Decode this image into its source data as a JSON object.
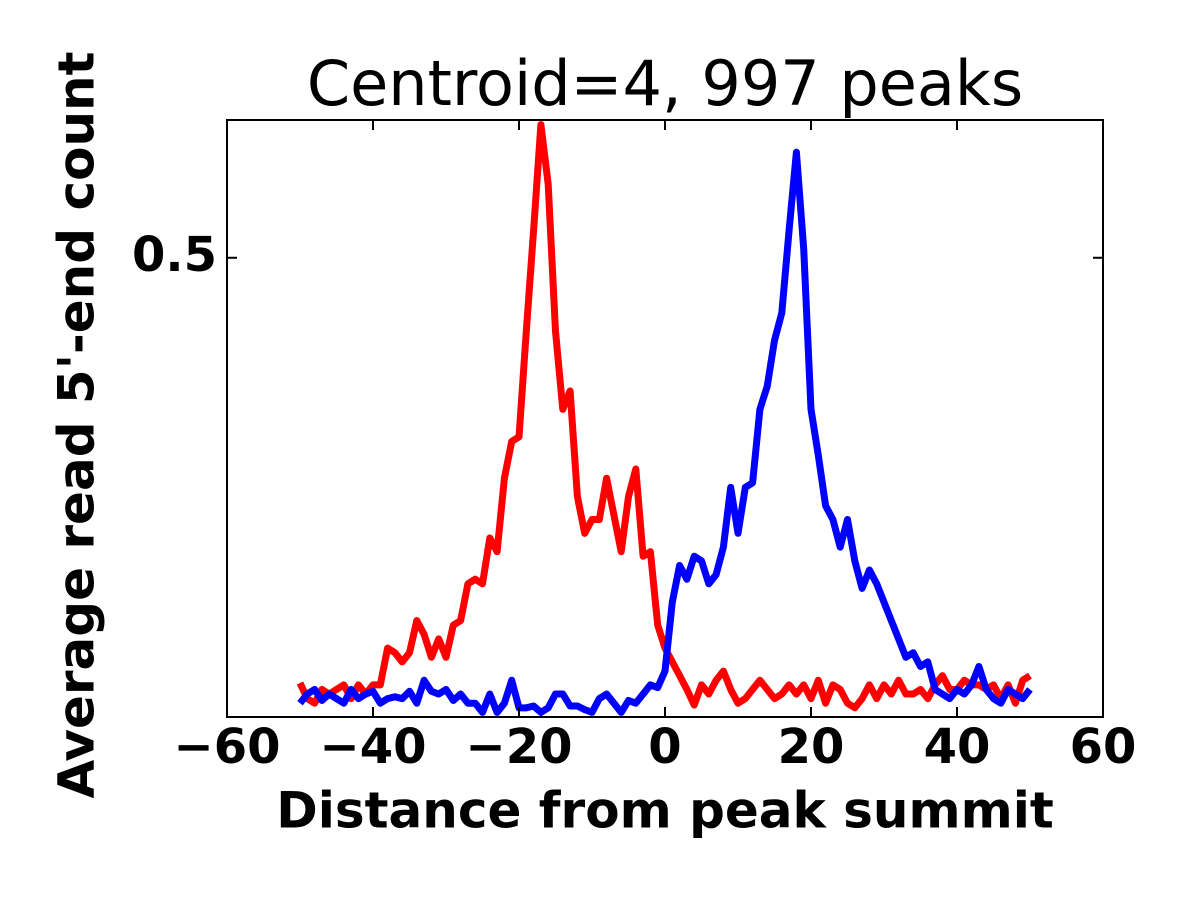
{
  "chart_data": {
    "type": "line",
    "title": "Centroid=4, 997 peaks",
    "x_label": "Distance from peak summit",
    "y_label": "Average read 5'-end count",
    "x": [
      -50,
      -49,
      -48,
      -47,
      -46,
      -45,
      -44,
      -43,
      -42,
      -41,
      -40,
      -39,
      -38,
      -37,
      -36,
      -35,
      -34,
      -33,
      -32,
      -31,
      -30,
      -29,
      -28,
      -27,
      -26,
      -25,
      -24,
      -23,
      -22,
      -21,
      -20,
      -19,
      -18,
      -17,
      -16,
      -15,
      -14,
      -13,
      -12,
      -11,
      -10,
      -9,
      -8,
      -7,
      -6,
      -5,
      -4,
      -3,
      -2,
      -1,
      0,
      1,
      2,
      3,
      4,
      5,
      6,
      7,
      8,
      9,
      10,
      11,
      12,
      13,
      14,
      15,
      16,
      17,
      18,
      19,
      20,
      21,
      22,
      23,
      24,
      25,
      26,
      27,
      28,
      29,
      30,
      31,
      32,
      33,
      34,
      35,
      36,
      37,
      38,
      39,
      40,
      41,
      42,
      43,
      44,
      45,
      46,
      47,
      48,
      49,
      50
    ],
    "series": [
      {
        "color": "#ff0000",
        "values": [
          0.037,
          0.02,
          0.015,
          0.03,
          0.025,
          0.03,
          0.035,
          0.02,
          0.035,
          0.025,
          0.035,
          0.035,
          0.075,
          0.07,
          0.06,
          0.07,
          0.105,
          0.09,
          0.065,
          0.085,
          0.065,
          0.1,
          0.105,
          0.145,
          0.15,
          0.145,
          0.195,
          0.18,
          0.26,
          0.3,
          0.305,
          0.42,
          0.53,
          0.645,
          0.58,
          0.42,
          0.335,
          0.355,
          0.24,
          0.2,
          0.215,
          0.215,
          0.26,
          0.22,
          0.18,
          0.24,
          0.27,
          0.175,
          0.18,
          0.1,
          0.075,
          0.06,
          0.045,
          0.03,
          0.013,
          0.035,
          0.025,
          0.04,
          0.05,
          0.03,
          0.015,
          0.02,
          0.03,
          0.04,
          0.03,
          0.02,
          0.025,
          0.035,
          0.025,
          0.035,
          0.02,
          0.04,
          0.015,
          0.035,
          0.03,
          0.015,
          0.01,
          0.02,
          0.035,
          0.02,
          0.035,
          0.025,
          0.04,
          0.025,
          0.025,
          0.03,
          0.02,
          0.035,
          0.045,
          0.03,
          0.03,
          0.04,
          0.035,
          0.035,
          0.03,
          0.035,
          0.02,
          0.035,
          0.015,
          0.04,
          0.045
        ]
      },
      {
        "color": "#0000ff",
        "values": [
          0.015,
          0.025,
          0.03,
          0.018,
          0.025,
          0.02,
          0.015,
          0.03,
          0.02,
          0.025,
          0.028,
          0.015,
          0.02,
          0.022,
          0.02,
          0.028,
          0.015,
          0.04,
          0.028,
          0.025,
          0.03,
          0.018,
          0.025,
          0.015,
          0.015,
          0.005,
          0.025,
          0.005,
          0.015,
          0.04,
          0.01,
          0.01,
          0.012,
          0.005,
          0.01,
          0.025,
          0.025,
          0.012,
          0.012,
          0.008,
          0.005,
          0.02,
          0.025,
          0.015,
          0.005,
          0.018,
          0.015,
          0.025,
          0.035,
          0.032,
          0.05,
          0.125,
          0.165,
          0.15,
          0.175,
          0.17,
          0.145,
          0.155,
          0.185,
          0.25,
          0.2,
          0.25,
          0.255,
          0.335,
          0.36,
          0.41,
          0.44,
          0.53,
          0.615,
          0.51,
          0.335,
          0.285,
          0.23,
          0.215,
          0.185,
          0.215,
          0.17,
          0.14,
          0.16,
          0.145,
          0.125,
          0.105,
          0.085,
          0.065,
          0.07,
          0.055,
          0.06,
          0.03,
          0.025,
          0.02,
          0.03,
          0.025,
          0.035,
          0.055,
          0.03,
          0.02,
          0.015,
          0.03,
          0.025,
          0.02,
          0.03
        ]
      }
    ],
    "xlim": [
      -60,
      60
    ],
    "xticks": [
      {
        "value": -60,
        "label": "−60"
      },
      {
        "value": -40,
        "label": "−40"
      },
      {
        "value": -20,
        "label": "−20"
      },
      0,
      20,
      40,
      60
    ],
    "ylim": [
      0,
      0.65
    ],
    "yticks": [
      0.5
    ]
  }
}
